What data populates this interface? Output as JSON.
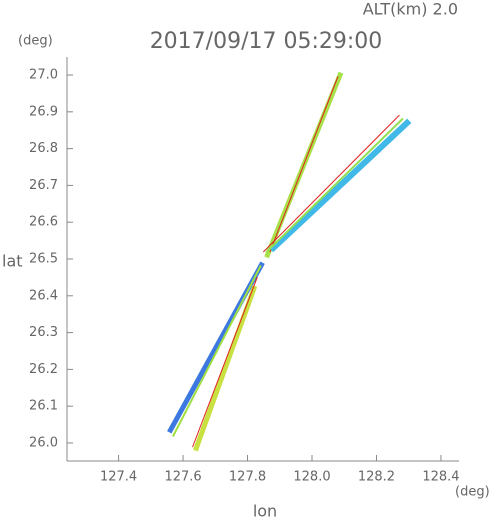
{
  "chart_data": {
    "type": "line",
    "annotation": "ALT(km) 2.0",
    "title": "2017/09/17 05:29:00",
    "y_unit": "(deg)",
    "x_unit": "(deg)",
    "xlabel": "lon",
    "ylabel": "lat",
    "xlim": [
      127.24,
      128.456
    ],
    "ylim": [
      25.951,
      27.049
    ],
    "xticks": [
      127.4,
      127.6,
      127.8,
      {
        "value": 128.0,
        "label": "128.0"
      },
      128.2,
      128.4
    ],
    "yticks": [
      {
        "value": 26.0,
        "label": "26.0"
      },
      26.1,
      26.2,
      26.3,
      26.4,
      26.5,
      26.6,
      26.7,
      26.8,
      26.9,
      {
        "value": 27.0,
        "label": "27.0"
      }
    ],
    "series": [
      {
        "color": "#a8e048",
        "width": 5,
        "x": [
          127.862,
          128.087
        ],
        "values": [
          26.511,
          27.0
        ]
      },
      {
        "color": "#e02020",
        "width": 1,
        "x": [
          127.87,
          128.08
        ],
        "values": [
          26.52,
          26.995
        ]
      },
      {
        "color": "#40b8e8",
        "width": 6,
        "x": [
          127.88,
          128.295
        ],
        "values": [
          26.53,
          26.87
        ]
      },
      {
        "color": "#90e050",
        "width": 2,
        "x": [
          127.86,
          128.28
        ],
        "values": [
          26.52,
          26.88
        ]
      },
      {
        "color": "#e02020",
        "width": 1,
        "x": [
          127.85,
          128.27
        ],
        "values": [
          26.52,
          26.89
        ]
      },
      {
        "color": "#3c78e0",
        "width": 5,
        "x": [
          127.843,
          127.561
        ],
        "values": [
          26.484,
          26.035
        ]
      },
      {
        "color": "#a0e040",
        "width": 2,
        "x": [
          127.84,
          127.57
        ],
        "values": [
          26.48,
          26.02
        ]
      },
      {
        "color": "#c8e040",
        "width": 5,
        "x": [
          127.82,
          127.641
        ],
        "values": [
          26.42,
          25.986
        ]
      },
      {
        "color": "#e02020",
        "width": 1,
        "x": [
          127.83,
          127.63
        ],
        "values": [
          26.45,
          25.99
        ]
      }
    ]
  }
}
